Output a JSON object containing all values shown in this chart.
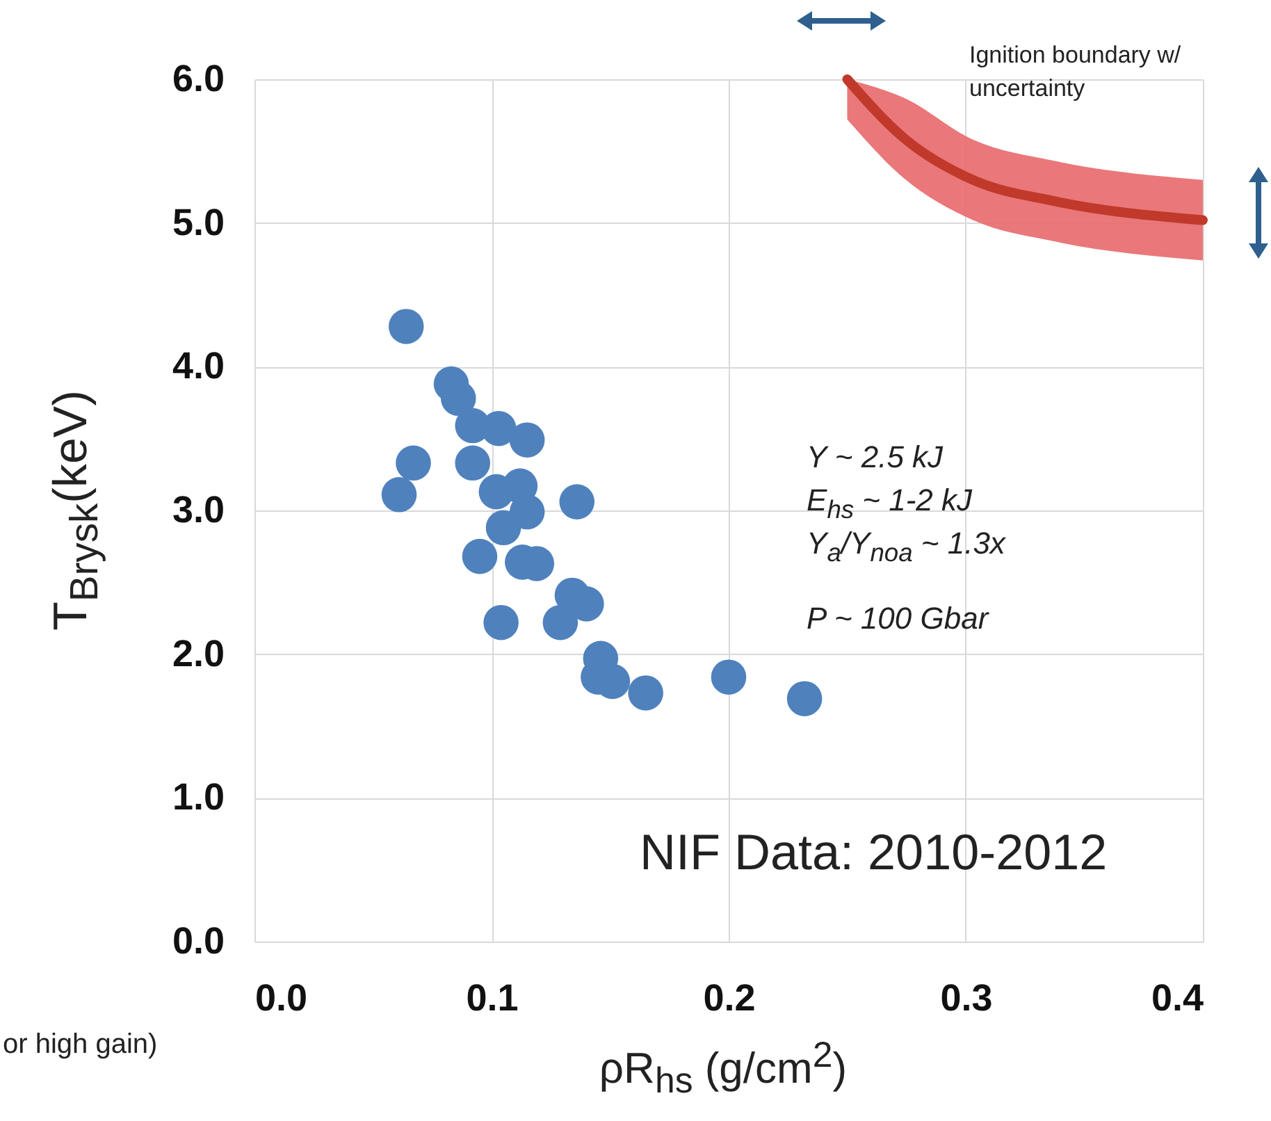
{
  "chart_data": {
    "type": "scatter",
    "xlabel": "ρR$_{hs}$ (g/cm$^{2}$)",
    "ylabel": "T$_{Brysk}$(keV)",
    "xlim": [
      0,
      0.4
    ],
    "ylim": [
      0,
      6
    ],
    "xticks": [
      {
        "value": 0,
        "label": "0.0"
      },
      0.1,
      0.2,
      0.3,
      0.4
    ],
    "yticks": [
      {
        "value": 0,
        "label": "0.0"
      },
      {
        "value": 1,
        "label": "1.0"
      },
      {
        "value": 2,
        "label": "2.0"
      },
      {
        "value": 3,
        "label": "3.0"
      },
      {
        "value": 4,
        "label": "4.0"
      },
      {
        "value": 5,
        "label": "5.0"
      },
      {
        "value": 6,
        "label": "6.0"
      }
    ],
    "grid": true,
    "series": [
      {
        "marker": "circle",
        "color": "#4f81bd",
        "x": [
          0.064,
          0.083,
          0.086,
          0.092,
          0.103,
          0.115,
          0.067,
          0.092,
          0.061,
          0.102,
          0.112,
          0.115,
          0.136,
          0.105,
          0.095,
          0.113,
          0.119,
          0.134,
          0.14,
          0.104,
          0.129,
          0.146,
          0.145,
          0.151,
          0.165,
          0.2,
          0.232
        ],
        "values": [
          4.28,
          3.88,
          3.78,
          3.59,
          3.57,
          3.49,
          3.33,
          3.33,
          3.11,
          3.13,
          3.17,
          2.99,
          3.06,
          2.88,
          2.68,
          2.64,
          2.63,
          2.41,
          2.35,
          2.22,
          2.22,
          1.97,
          1.84,
          1.81,
          1.73,
          1.84,
          1.69
        ]
      },
      {
        "type": "line",
        "marker": "none",
        "color": "#c0392b",
        "x": [
          0.25,
          0.274,
          0.303,
          0.338,
          0.4
        ],
        "values": [
          6.0,
          5.59,
          5.3,
          5.15,
          5.02
        ],
        "lower": [
          5.72,
          5.31,
          5.02,
          4.87,
          4.74
        ],
        "upper": [
          6.0,
          5.87,
          5.58,
          5.43,
          5.3
        ]
      }
    ],
    "annotations": [
      "Ignition boundary w/ uncertainty",
      "Y ~ 2.5 kJ",
      "E$_{hs}$ ~ 1-2 kJ",
      "Y$_{a}$/Y$_{noa}$ ~ 1.3x",
      "P ~ 100 Gbar",
      "NIF Data: 2010-2012",
      "or high gain)"
    ]
  }
}
